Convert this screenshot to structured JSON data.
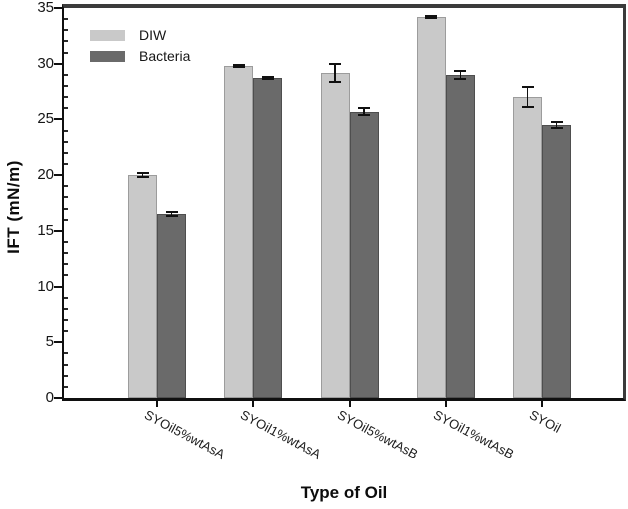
{
  "chart_data": {
    "type": "bar",
    "title": "",
    "xlabel": "Type of Oil",
    "ylabel": "IFT (mN/m)",
    "ylim": [
      0,
      35
    ],
    "y_tick_labels": [
      "0",
      "5",
      "10",
      "15",
      "20",
      "25",
      "30",
      "35"
    ],
    "y_major_tick_step": 5,
    "y_minor_tick_step": 1,
    "grid": false,
    "legend_position": "upper-left",
    "categories": [
      "SYOil5%wtAsA",
      "SYOil1%wtAsA",
      "SYOil5%wtAsB",
      "SYOil1%wtAsB",
      "SYOil"
    ],
    "series": [
      {
        "name": "DIW",
        "color": "#c9c9c9",
        "edge_color": "#9c9c9c",
        "values": [
          20.0,
          29.8,
          29.2,
          34.2,
          27.0
        ],
        "errors": [
          0.15,
          0.1,
          0.8,
          0.12,
          0.9
        ]
      },
      {
        "name": "Bacteria",
        "color": "#6a6a6a",
        "edge_color": "#4e4e4e",
        "values": [
          16.5,
          28.7,
          25.7,
          29.0,
          24.5
        ],
        "errors": [
          0.2,
          0.1,
          0.3,
          0.35,
          0.25
        ]
      }
    ],
    "error_bar_color": "#111111"
  }
}
